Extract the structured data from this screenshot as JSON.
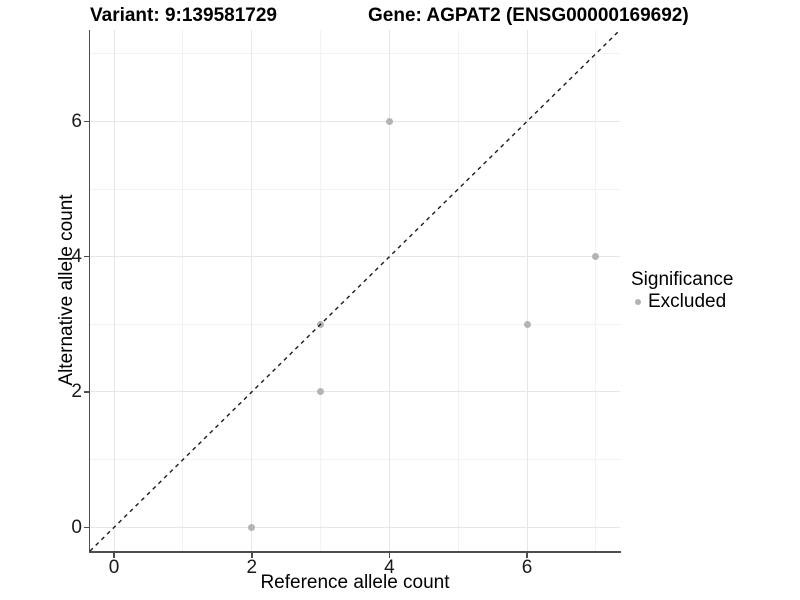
{
  "chart_data": {
    "type": "scatter",
    "titles": [
      "Variant: 9:139581729",
      "Gene: AGPAT2 (ENSG00000169692)"
    ],
    "xlabel": "Reference allele count",
    "ylabel": "Alternative allele count",
    "axes": {
      "x": {
        "ticks": [
          0,
          2,
          4,
          6
        ],
        "minor_ticks": [
          1,
          3,
          5,
          7
        ],
        "range": [
          -0.35,
          7.35
        ]
      },
      "y": {
        "ticks": [
          0,
          2,
          4,
          6
        ],
        "minor_ticks": [
          1,
          3,
          5,
          7
        ],
        "range": [
          -0.35,
          7.35
        ]
      }
    },
    "grid": "on",
    "series": [
      {
        "name": "Excluded",
        "color": "#b4b4b4",
        "points": [
          [
            2,
            0
          ],
          [
            3,
            2
          ],
          [
            3,
            3
          ],
          [
            4,
            6
          ],
          [
            6,
            3
          ],
          [
            7,
            4
          ]
        ]
      }
    ],
    "reference_line": {
      "slope": 1,
      "intercept": 0,
      "style": "dashed",
      "color": "#1a1a1a"
    },
    "legend": {
      "title": "Significance",
      "position": "right",
      "entries": [
        {
          "label": "Excluded",
          "color": "#b4b4b4"
        }
      ]
    }
  },
  "style": {
    "background": "#ffffff",
    "grid_major": "#e6e6e6",
    "grid_minor": "#f2f2f2",
    "axis_line": "#4d4d4d",
    "title_color": "#000000",
    "tick_label_color": "#1a1a1a"
  }
}
